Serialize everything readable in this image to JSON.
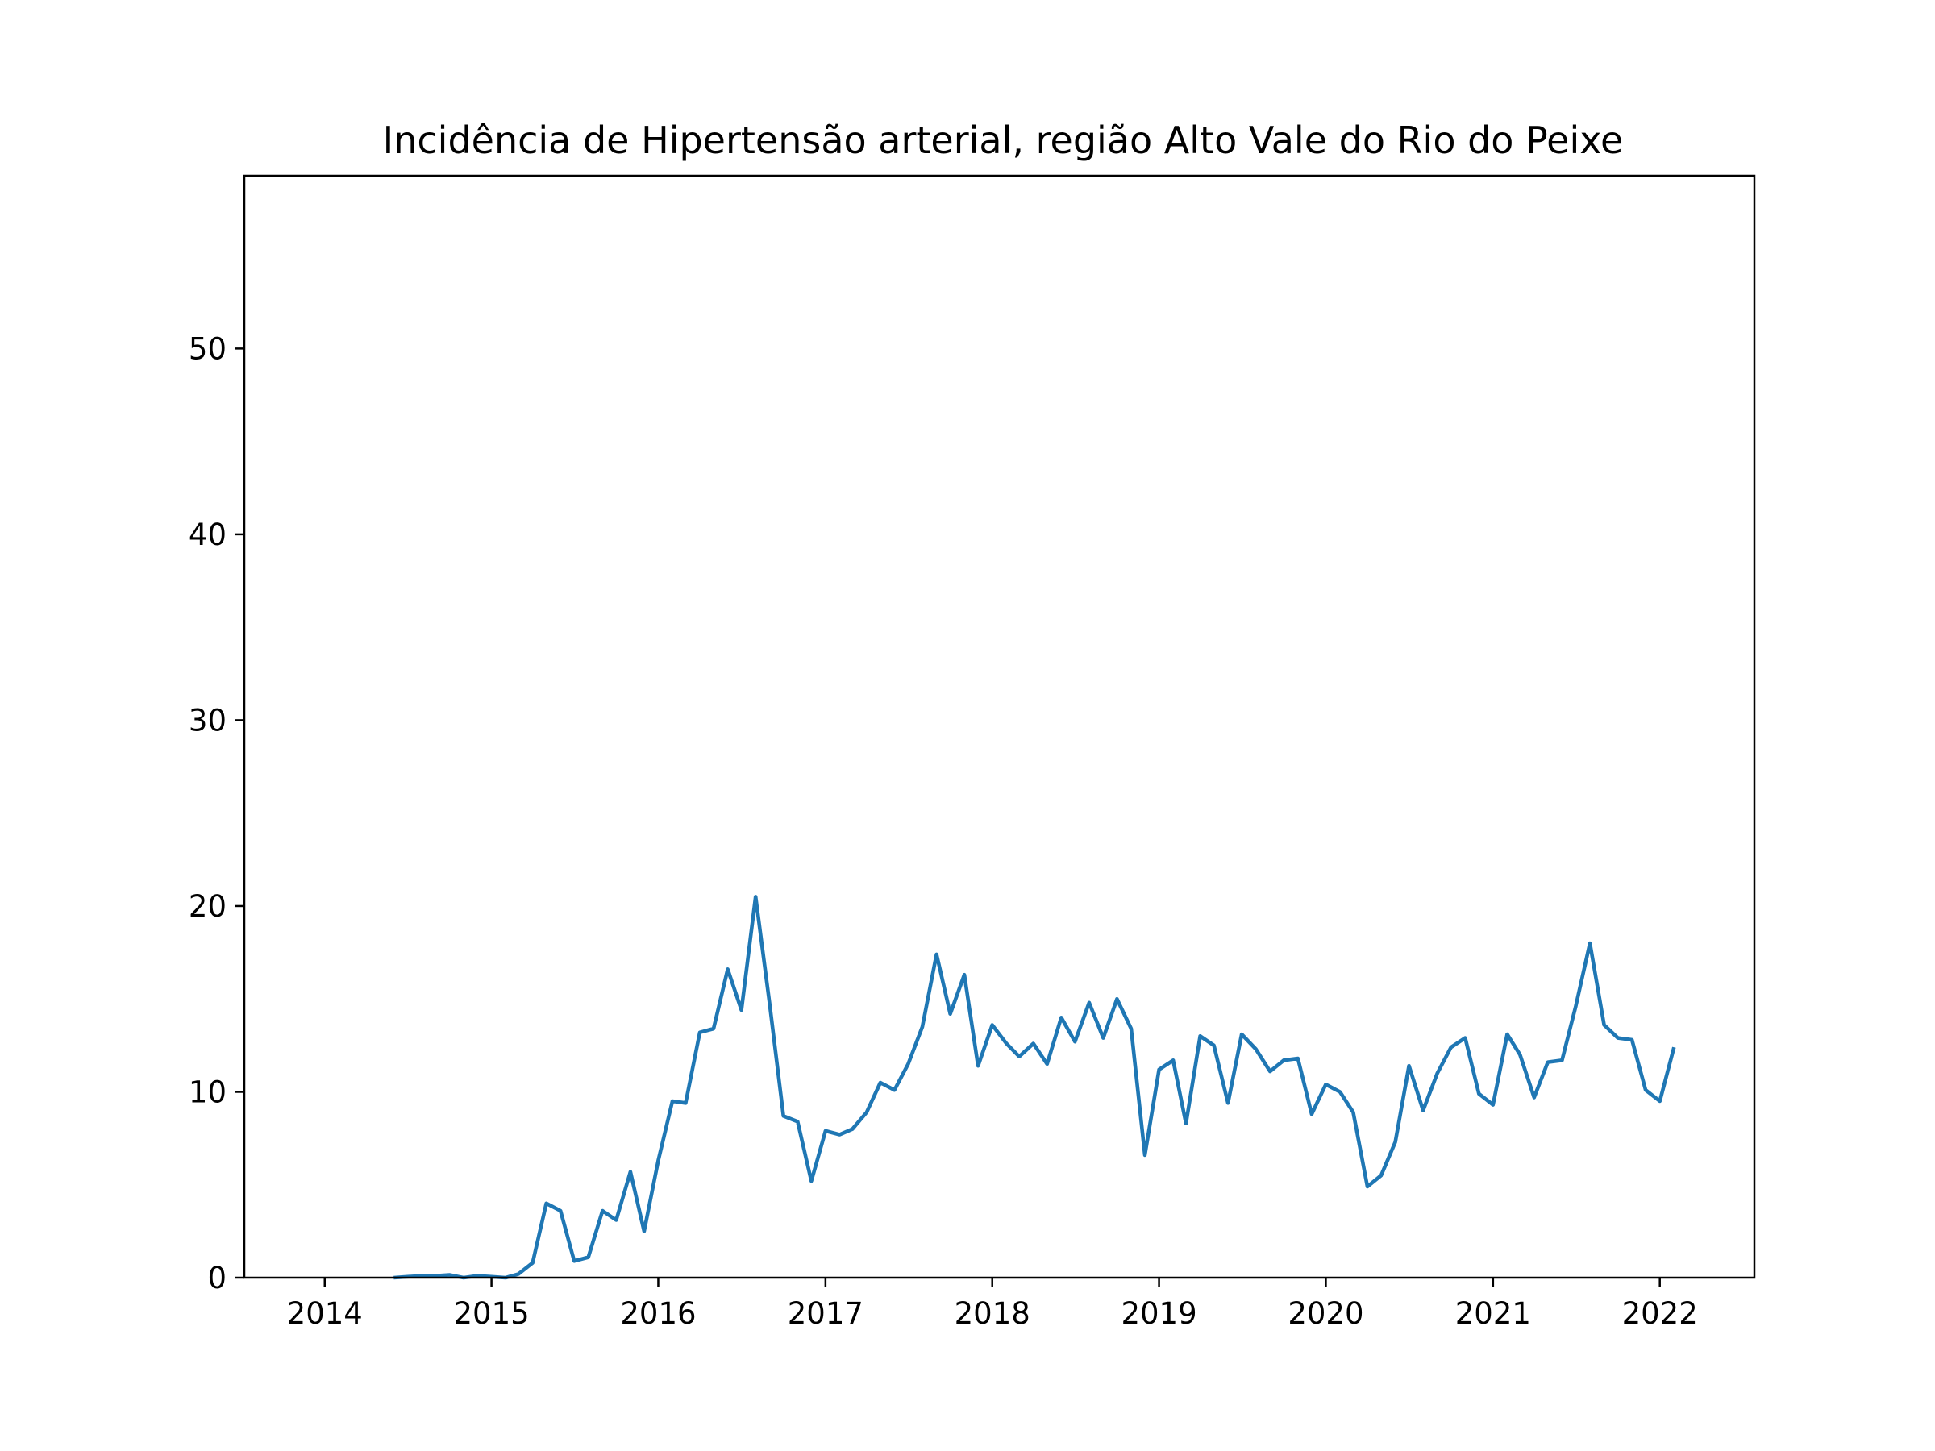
{
  "chart_data": {
    "type": "line",
    "title": "Incidência de Hipertensão arterial, região Alto Vale do Rio do Peixe",
    "xlabel": "",
    "ylabel": "",
    "xlim": [
      "2013-07-09",
      "2022-07-27"
    ],
    "ylim": [
      0,
      59.3
    ],
    "x_ticks": [
      "2014",
      "2015",
      "2016",
      "2017",
      "2018",
      "2019",
      "2020",
      "2021",
      "2022"
    ],
    "y_ticks": [
      0,
      10,
      20,
      30,
      40,
      50
    ],
    "grid": false,
    "legend": "none",
    "series": [
      {
        "color": "#1f77b4",
        "x": [
          "2014-06",
          "2014-07",
          "2014-08",
          "2014-09",
          "2014-10",
          "2014-11",
          "2014-12",
          "2015-01",
          "2015-02",
          "2015-03",
          "2015-04",
          "2015-05",
          "2015-06",
          "2015-07",
          "2015-08",
          "2015-09",
          "2015-10",
          "2015-11",
          "2015-12",
          "2016-01",
          "2016-02",
          "2016-03",
          "2016-04",
          "2016-05",
          "2016-06",
          "2016-07",
          "2016-08",
          "2016-09",
          "2016-10",
          "2016-11",
          "2016-12",
          "2017-01",
          "2017-02",
          "2017-03",
          "2017-04",
          "2017-05",
          "2017-06",
          "2017-07",
          "2017-08",
          "2017-09",
          "2017-10",
          "2017-11",
          "2017-12",
          "2018-01",
          "2018-02",
          "2018-03",
          "2018-04",
          "2018-05",
          "2018-06",
          "2018-07",
          "2018-08",
          "2018-09",
          "2018-10",
          "2018-11",
          "2018-12",
          "2019-01",
          "2019-02",
          "2019-03",
          "2019-04",
          "2019-05",
          "2019-06",
          "2019-07",
          "2019-08",
          "2019-09",
          "2019-10",
          "2019-11",
          "2019-12",
          "2020-01",
          "2020-02",
          "2020-03",
          "2020-04",
          "2020-05",
          "2020-06",
          "2020-07",
          "2020-08",
          "2020-09",
          "2020-10",
          "2020-11",
          "2020-12",
          "2021-01",
          "2021-02",
          "2021-03",
          "2021-04",
          "2021-05",
          "2021-06",
          "2021-07",
          "2021-08",
          "2021-09",
          "2021-10",
          "2021-11",
          "2021-12",
          "2022-01",
          "2022-02"
        ],
        "values": [
          0,
          0.05,
          0.1,
          0.1,
          0.15,
          0,
          0.1,
          0.05,
          0,
          0.2,
          0.8,
          4.0,
          3.6,
          0.9,
          1.1,
          3.6,
          3.1,
          5.7,
          2.5,
          6.3,
          9.5,
          9.4,
          13.2,
          13.4,
          16.6,
          14.4,
          20.5,
          14.7,
          8.7,
          8.4,
          5.2,
          7.9,
          7.7,
          8.0,
          8.9,
          10.5,
          10.1,
          11.5,
          13.5,
          17.4,
          14.2,
          16.3,
          11.4,
          13.6,
          12.6,
          11.9,
          12.6,
          11.5,
          14.0,
          12.7,
          14.8,
          12.9,
          15.0,
          13.4,
          6.6,
          11.2,
          11.7,
          8.3,
          13.0,
          12.5,
          9.4,
          13.1,
          12.3,
          11.1,
          11.7,
          11.8,
          8.8,
          10.4,
          10.0,
          8.9,
          4.9,
          5.5,
          7.3,
          11.4,
          9.0,
          11.0,
          12.4,
          12.9,
          9.9,
          9.3,
          13.1,
          12.0,
          9.7,
          11.6,
          11.7,
          14.6,
          18.0,
          13.6,
          12.9,
          12.8,
          10.1,
          9.5,
          12.4
        ]
      }
    ]
  }
}
